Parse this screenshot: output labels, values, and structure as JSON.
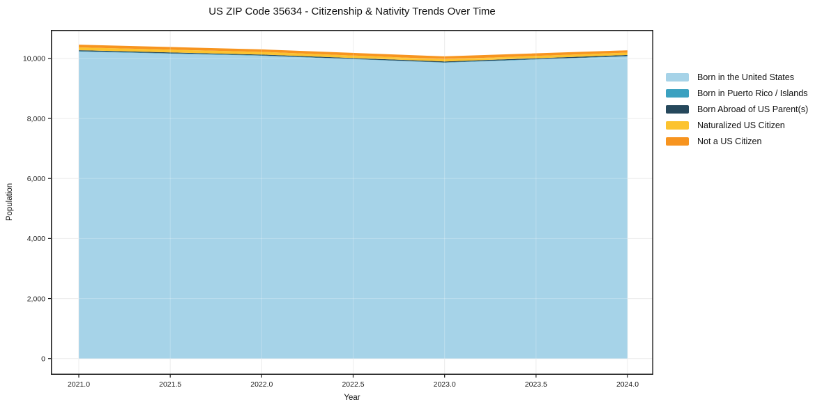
{
  "chart_data": {
    "type": "area",
    "stacked": true,
    "title": "US ZIP Code 35634 - Citizenship & Nativity Trends Over Time",
    "xlabel": "Year",
    "ylabel": "Population",
    "x": [
      2021,
      2022,
      2023,
      2024
    ],
    "series": [
      {
        "name": "Born in the United States",
        "color": "#a6d3e8",
        "values": [
          10230,
          10090,
          9860,
          10070
        ]
      },
      {
        "name": "Born in Puerto Rico / Islands",
        "color": "#3ba1c0",
        "values": [
          15,
          12,
          10,
          12
        ]
      },
      {
        "name": "Born Abroad of US Parent(s)",
        "color": "#26485c",
        "values": [
          30,
          28,
          30,
          34
        ]
      },
      {
        "name": "Naturalized US Citizen",
        "color": "#fcc32f",
        "values": [
          95,
          90,
          75,
          80
        ]
      },
      {
        "name": "Not a US Citizen",
        "color": "#f7941f",
        "values": [
          90,
          82,
          95,
          76
        ]
      }
    ],
    "totals": [
      10460,
      10302,
      10070,
      10272
    ],
    "xlim": [
      2020.8475,
      2024.141
    ],
    "ylim": [
      -540,
      10950
    ],
    "x_tick_values": [
      2021.0,
      2021.5,
      2022.0,
      2022.5,
      2023.0,
      2023.5,
      2024.0
    ],
    "x_tick_labels": [
      "2021.0",
      "2021.5",
      "2022.0",
      "2022.5",
      "2023.0",
      "2023.5",
      "2024.0"
    ],
    "y_tick_values": [
      0,
      2000,
      4000,
      6000,
      8000,
      10000
    ],
    "y_tick_labels": [
      "0",
      "2,000",
      "4,000",
      "6,000",
      "8,000",
      "10,000"
    ],
    "grid": true,
    "grid_color": "#e7e7e7",
    "axis_color": "#1a1a1a",
    "tick_label_color": "#1a1a1a",
    "background": "#ffffff",
    "legend_position": "right of plot, frameless"
  }
}
